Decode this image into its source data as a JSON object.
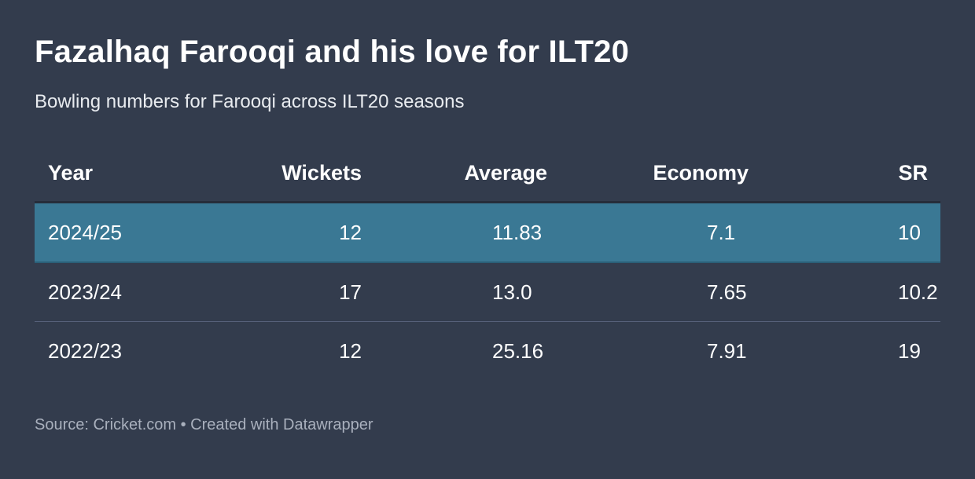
{
  "title": "Fazalhaq Farooqi and his love for ILT20",
  "subtitle": "Bowling numbers for Farooqi across ILT20 seasons",
  "colors": {
    "background": "#333c4d",
    "highlight_row": "#3a7894"
  },
  "chart_data": {
    "type": "table",
    "columns": [
      "Year",
      "Wickets",
      "Average",
      "Economy",
      "SR"
    ],
    "rows": [
      [
        "2024/25",
        "12",
        "11.83",
        "7.1",
        "10"
      ],
      [
        "2023/24",
        "17",
        "13.0",
        "7.65",
        "10.2"
      ],
      [
        "2022/23",
        "12",
        "25.16",
        "7.91",
        "19"
      ]
    ],
    "highlighted_row": "2024/25"
  },
  "footer": "Source: Cricket.com • Created with Datawrapper"
}
